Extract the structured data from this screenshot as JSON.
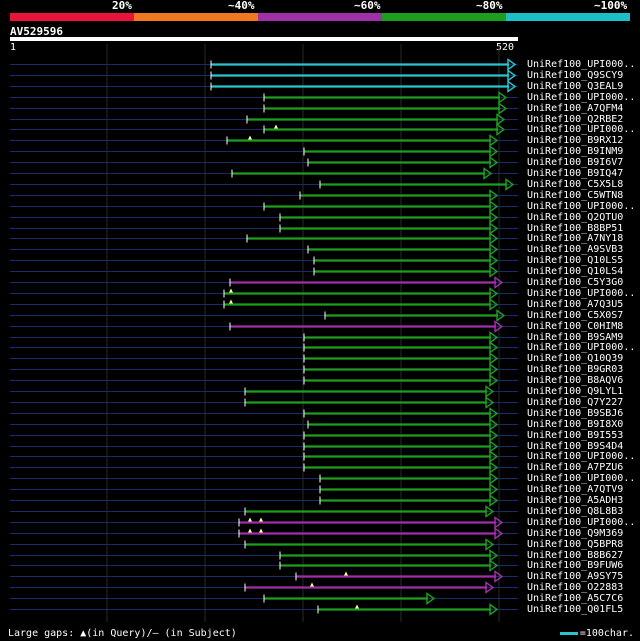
{
  "identity_scale": {
    "labels": [
      "20%",
      "~40%",
      "~60%",
      "~80%",
      "~100%"
    ],
    "colors": [
      "#e8143c",
      "#f07820",
      "#a030a8",
      "#1e9e1e",
      "#1ebec8"
    ]
  },
  "query": {
    "name": "AV529596",
    "start": "1",
    "end": "520"
  },
  "legend": {
    "gaps_text": "Large gaps: ▲(in Query)/– (in Subject)",
    "scale_text": "=100char."
  },
  "hits": [
    {
      "name": "UniRef100_UPI000..",
      "color": "cyan"
    },
    {
      "name": "UniRef100_Q9SCY9",
      "color": "cyan"
    },
    {
      "name": "UniRef100_Q3EAL9",
      "color": "cyan"
    },
    {
      "name": "UniRef100_UPI000..",
      "color": "green"
    },
    {
      "name": "UniRef100_A7QFM4",
      "color": "green"
    },
    {
      "name": "UniRef100_Q2RBE2",
      "color": "green"
    },
    {
      "name": "UniRef100_UPI000..",
      "color": "green"
    },
    {
      "name": "UniRef100_B9RX12",
      "color": "green"
    },
    {
      "name": "UniRef100_B9INM9",
      "color": "green"
    },
    {
      "name": "UniRef100_B9I6V7",
      "color": "green"
    },
    {
      "name": "UniRef100_B9IQ47",
      "color": "green"
    },
    {
      "name": "UniRef100_C5X5L8",
      "color": "green"
    },
    {
      "name": "UniRef100_C5WTN8",
      "color": "green"
    },
    {
      "name": "UniRef100_UPI000..",
      "color": "green"
    },
    {
      "name": "UniRef100_Q2QTU0",
      "color": "green"
    },
    {
      "name": "UniRef100_B8BP51",
      "color": "green"
    },
    {
      "name": "UniRef100_A7NY18",
      "color": "green"
    },
    {
      "name": "UniRef100_A9SVB3",
      "color": "green"
    },
    {
      "name": "UniRef100_Q10LS5",
      "color": "green"
    },
    {
      "name": "UniRef100_Q10LS4",
      "color": "green"
    },
    {
      "name": "UniRef100_C5Y3G0",
      "color": "purple"
    },
    {
      "name": "UniRef100_UPI000..",
      "color": "green"
    },
    {
      "name": "UniRef100_A7Q3U5",
      "color": "green"
    },
    {
      "name": "UniRef100_C5X0S7",
      "color": "green"
    },
    {
      "name": "UniRef100_C0HIM8",
      "color": "purple"
    },
    {
      "name": "UniRef100_B9SAM9",
      "color": "green"
    },
    {
      "name": "UniRef100_UPI000..",
      "color": "green"
    },
    {
      "name": "UniRef100_Q10Q39",
      "color": "green"
    },
    {
      "name": "UniRef100_B9GR03",
      "color": "green"
    },
    {
      "name": "UniRef100_B8AQV6",
      "color": "green"
    },
    {
      "name": "UniRef100_Q9LYL1",
      "color": "green"
    },
    {
      "name": "UniRef100_Q7Y227",
      "color": "green"
    },
    {
      "name": "UniRef100_B9SBJ6",
      "color": "green"
    },
    {
      "name": "UniRef100_B9I8X0",
      "color": "green"
    },
    {
      "name": "UniRef100_B9I553",
      "color": "green"
    },
    {
      "name": "UniRef100_B9S4D4",
      "color": "green"
    },
    {
      "name": "UniRef100_UPI000..",
      "color": "green"
    },
    {
      "name": "UniRef100_A7PZU6",
      "color": "green"
    },
    {
      "name": "UniRef100_UPI000..",
      "color": "green"
    },
    {
      "name": "UniRef100_A7QTV9",
      "color": "green"
    },
    {
      "name": "UniRef100_A5ADH3",
      "color": "green"
    },
    {
      "name": "UniRef100_Q8L8B3",
      "color": "green"
    },
    {
      "name": "UniRef100_UPI000..",
      "color": "purple"
    },
    {
      "name": "UniRef100_Q9M369",
      "color": "purple"
    },
    {
      "name": "UniRef100_Q5BPR8",
      "color": "green"
    },
    {
      "name": "UniRef100_B8B627",
      "color": "green"
    },
    {
      "name": "UniRef100_B9FUW6",
      "color": "green"
    },
    {
      "name": "UniRef100_A9SY75",
      "color": "purple"
    },
    {
      "name": "UniRef100_O22883",
      "color": "purple"
    },
    {
      "name": "UniRef100_A5C7C6",
      "color": "green"
    },
    {
      "name": "UniRef100_Q01FL5",
      "color": "green"
    }
  ]
}
